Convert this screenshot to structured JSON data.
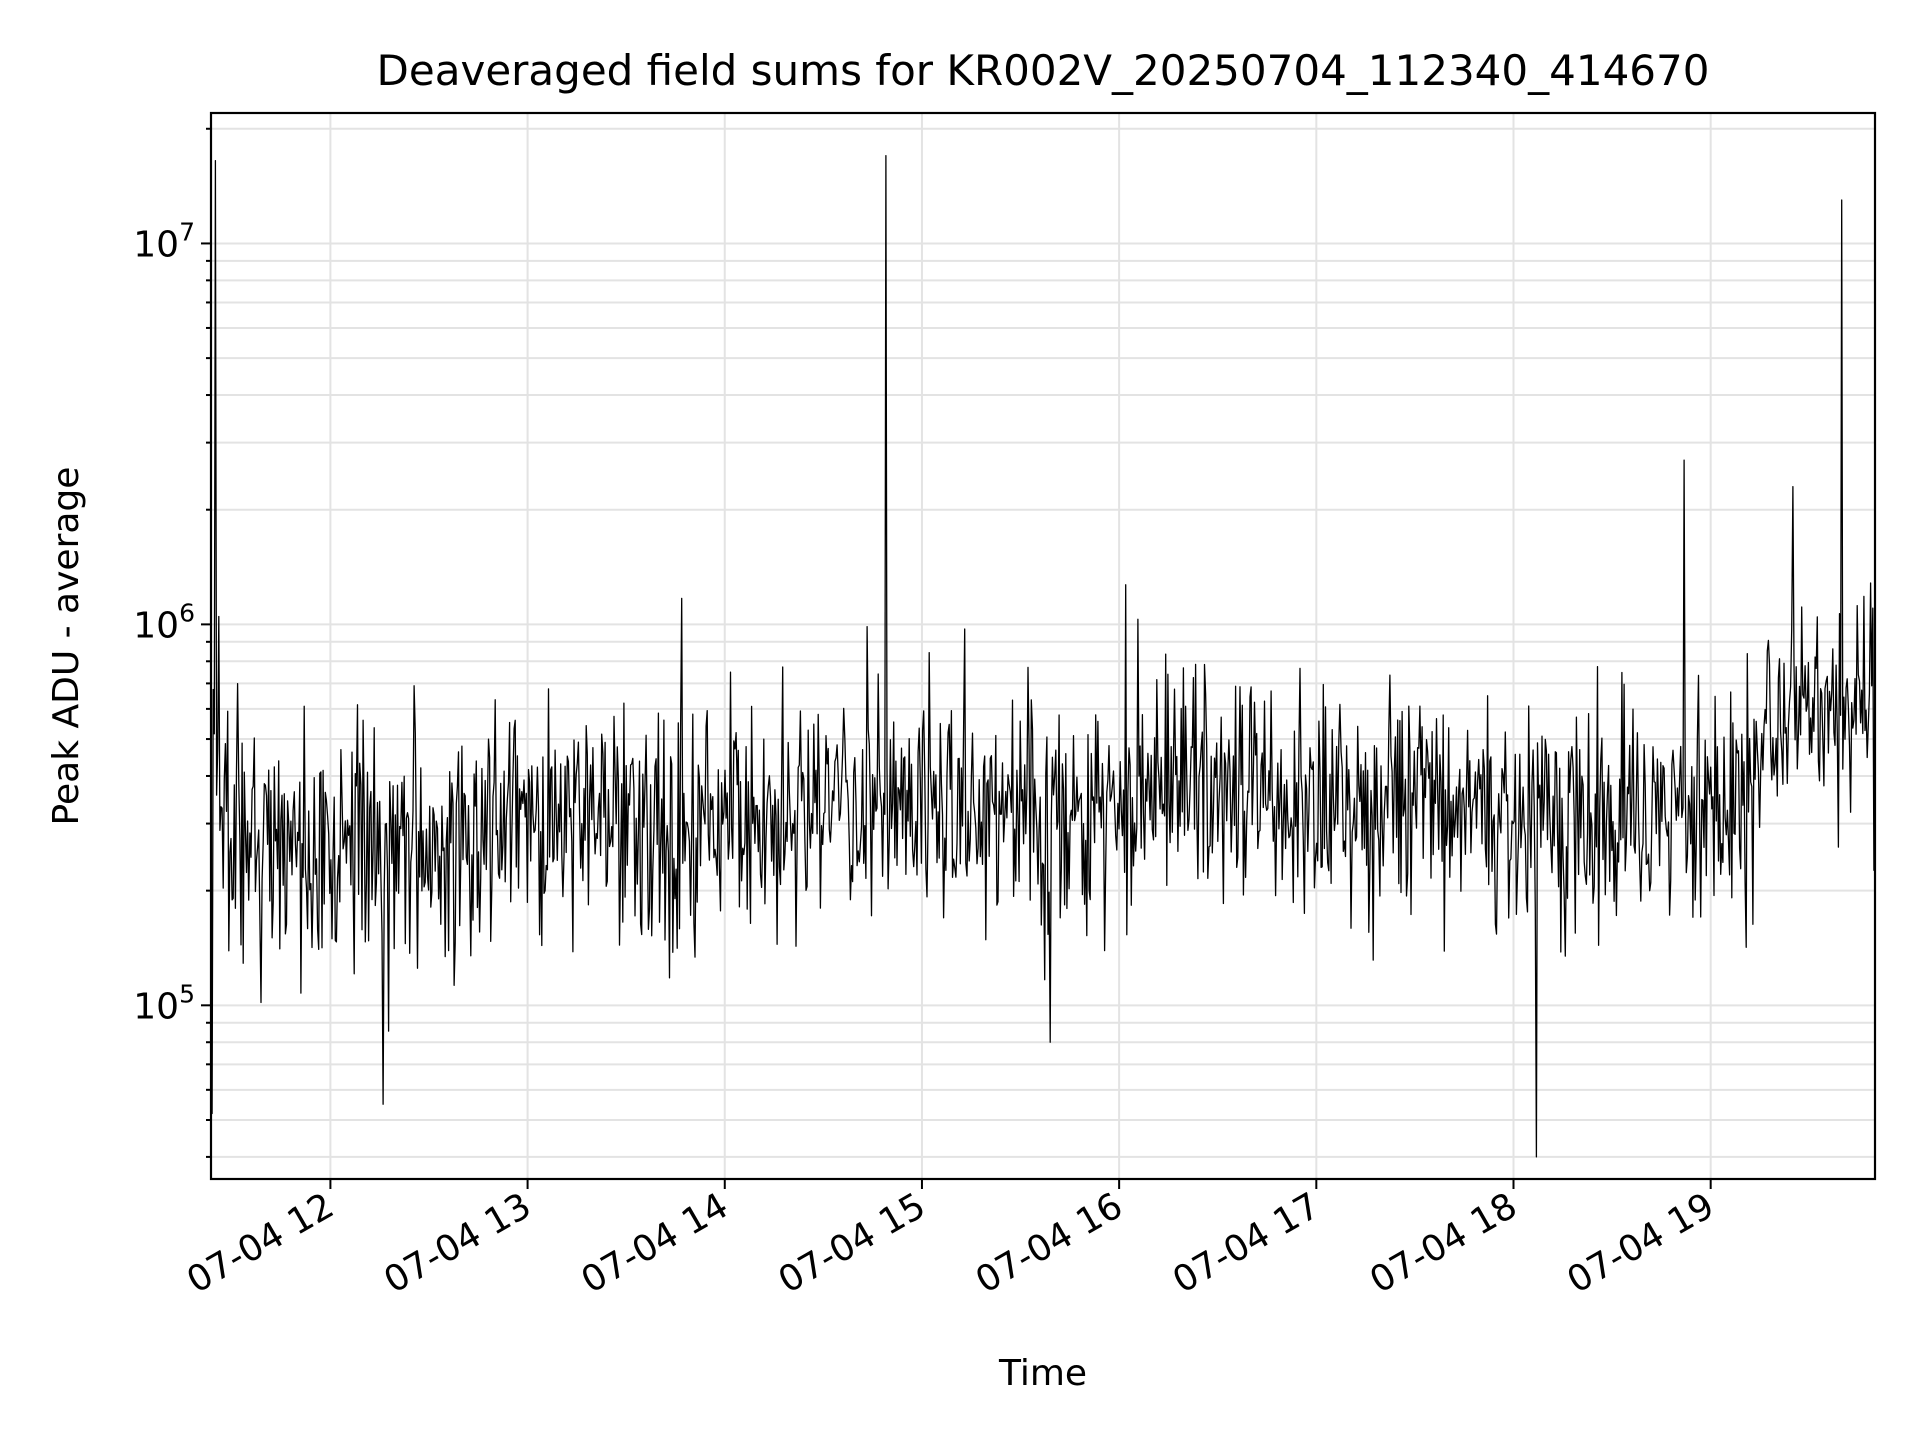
{
  "chart_data": {
    "type": "line",
    "title": "Deaveraged field sums for KR002V_20250704_112340_414670",
    "xlabel": "Time",
    "ylabel": "Peak ADU - average",
    "x_ticks": [
      "07-04 12",
      "07-04 13",
      "07-04 14",
      "07-04 15",
      "07-04 16",
      "07-04 17",
      "07-04 18",
      "07-04 19"
    ],
    "x_range": [
      "2025-07-04 11:23:40",
      "2025-07-04 19:50:00"
    ],
    "y_scale": "log",
    "y_range": [
      35000,
      22000000
    ],
    "y_ticks": [
      {
        "base": "10",
        "exp": "5",
        "value": 100000
      },
      {
        "base": "10",
        "exp": "6",
        "value": 1000000
      },
      {
        "base": "10",
        "exp": "7",
        "value": 10000000
      }
    ],
    "grid": true,
    "series": [
      {
        "color": "#000000",
        "x": [
          "2025-07-04 11:23:40",
          "2025-07-04 11:30",
          "2025-07-04 11:40",
          "2025-07-04 11:50",
          "2025-07-04 12:00",
          "2025-07-04 12:10",
          "2025-07-04 12:20",
          "2025-07-04 12:30",
          "2025-07-04 12:40",
          "2025-07-04 12:50",
          "2025-07-04 13:00",
          "2025-07-04 13:10",
          "2025-07-04 13:20",
          "2025-07-04 13:30",
          "2025-07-04 13:40",
          "2025-07-04 13:50",
          "2025-07-04 14:00",
          "2025-07-04 14:10",
          "2025-07-04 14:20",
          "2025-07-04 14:30",
          "2025-07-04 14:40",
          "2025-07-04 14:50",
          "2025-07-04 15:00",
          "2025-07-04 15:10",
          "2025-07-04 15:20",
          "2025-07-04 15:30",
          "2025-07-04 15:40",
          "2025-07-04 15:50",
          "2025-07-04 16:00",
          "2025-07-04 16:10",
          "2025-07-04 16:20",
          "2025-07-04 16:30",
          "2025-07-04 16:40",
          "2025-07-04 16:50",
          "2025-07-04 17:00",
          "2025-07-04 17:10",
          "2025-07-04 17:20",
          "2025-07-04 17:30",
          "2025-07-04 17:40",
          "2025-07-04 17:50",
          "2025-07-04 18:00",
          "2025-07-04 18:10",
          "2025-07-04 18:20",
          "2025-07-04 18:30",
          "2025-07-04 18:40",
          "2025-07-04 18:50",
          "2025-07-04 19:00",
          "2025-07-04 19:10",
          "2025-07-04 19:20",
          "2025-07-04 19:30",
          "2025-07-04 19:40",
          "2025-07-04 19:50"
        ],
        "y": [
          420000,
          300000,
          280000,
          260000,
          230000,
          250000,
          260000,
          250000,
          280000,
          300000,
          330000,
          320000,
          310000,
          300000,
          290000,
          300000,
          310000,
          320000,
          330000,
          330000,
          330000,
          330000,
          340000,
          330000,
          330000,
          340000,
          340000,
          350000,
          360000,
          360000,
          360000,
          350000,
          350000,
          340000,
          340000,
          340000,
          340000,
          340000,
          330000,
          330000,
          320000,
          320000,
          320000,
          320000,
          320000,
          330000,
          340000,
          350000,
          500000,
          600000,
          620000,
          560000
        ]
      }
    ],
    "spikes": [
      {
        "x": "2025-07-04 11:25",
        "y": 16500000
      },
      {
        "x": "2025-07-04 14:49",
        "y": 17000000
      },
      {
        "x": "2025-07-04 19:40",
        "y": 13000000
      },
      {
        "x": "2025-07-04 18:52",
        "y": 2700000
      },
      {
        "x": "2025-07-04 13:47",
        "y": 1170000
      },
      {
        "x": "2025-07-04 16:02",
        "y": 1270000
      },
      {
        "x": "2025-07-04 19:25",
        "y": 2300000
      },
      {
        "x": "2025-07-04 18:07",
        "y": 40000
      },
      {
        "x": "2025-07-04 11:24",
        "y": 52000
      },
      {
        "x": "2025-07-04 12:16",
        "y": 55000
      },
      {
        "x": "2025-07-04 15:39",
        "y": 80000
      }
    ]
  }
}
